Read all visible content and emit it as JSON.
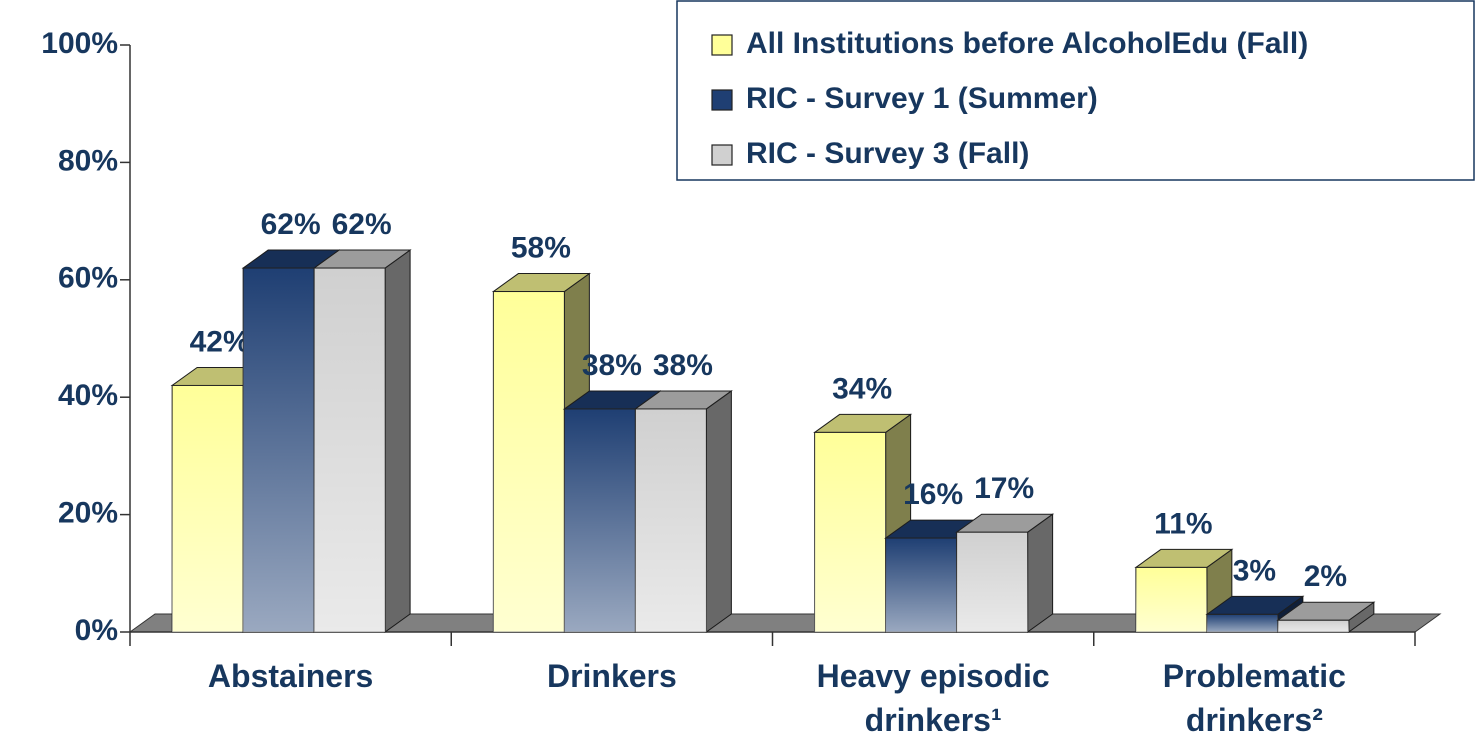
{
  "chart_data": {
    "type": "bar3d",
    "categories": [
      "Abstainers",
      "Drinkers",
      "Heavy episodic drinkers¹",
      "Problematic drinkers²"
    ],
    "series": [
      {
        "name": "All Institutions before AlcoholEdu (Fall)",
        "color": "#ffff99",
        "values": [
          42,
          58,
          34,
          11
        ],
        "value_labels": [
          "42%",
          "58%",
          "34%",
          "11%"
        ]
      },
      {
        "name": "RIC - Survey 1 (Summer)",
        "color": "#1f3f73",
        "values": [
          62,
          38,
          16,
          3
        ],
        "value_labels": [
          "62%",
          "38%",
          "16%",
          "3%"
        ]
      },
      {
        "name": "RIC - Survey 3 (Fall)",
        "color": "#d0d0d0",
        "values": [
          62,
          38,
          17,
          2
        ],
        "value_labels": [
          "62%",
          "38%",
          "17%",
          "2%"
        ]
      }
    ],
    "ylim": [
      0,
      100
    ],
    "yticks": [
      {
        "value": 0,
        "label": "0%"
      },
      {
        "value": 20,
        "label": "20%"
      },
      {
        "value": 40,
        "label": "40%"
      },
      {
        "value": 60,
        "label": "60%"
      },
      {
        "value": 80,
        "label": "80%"
      },
      {
        "value": 100,
        "label": "100%"
      }
    ],
    "legend": "top-right"
  }
}
